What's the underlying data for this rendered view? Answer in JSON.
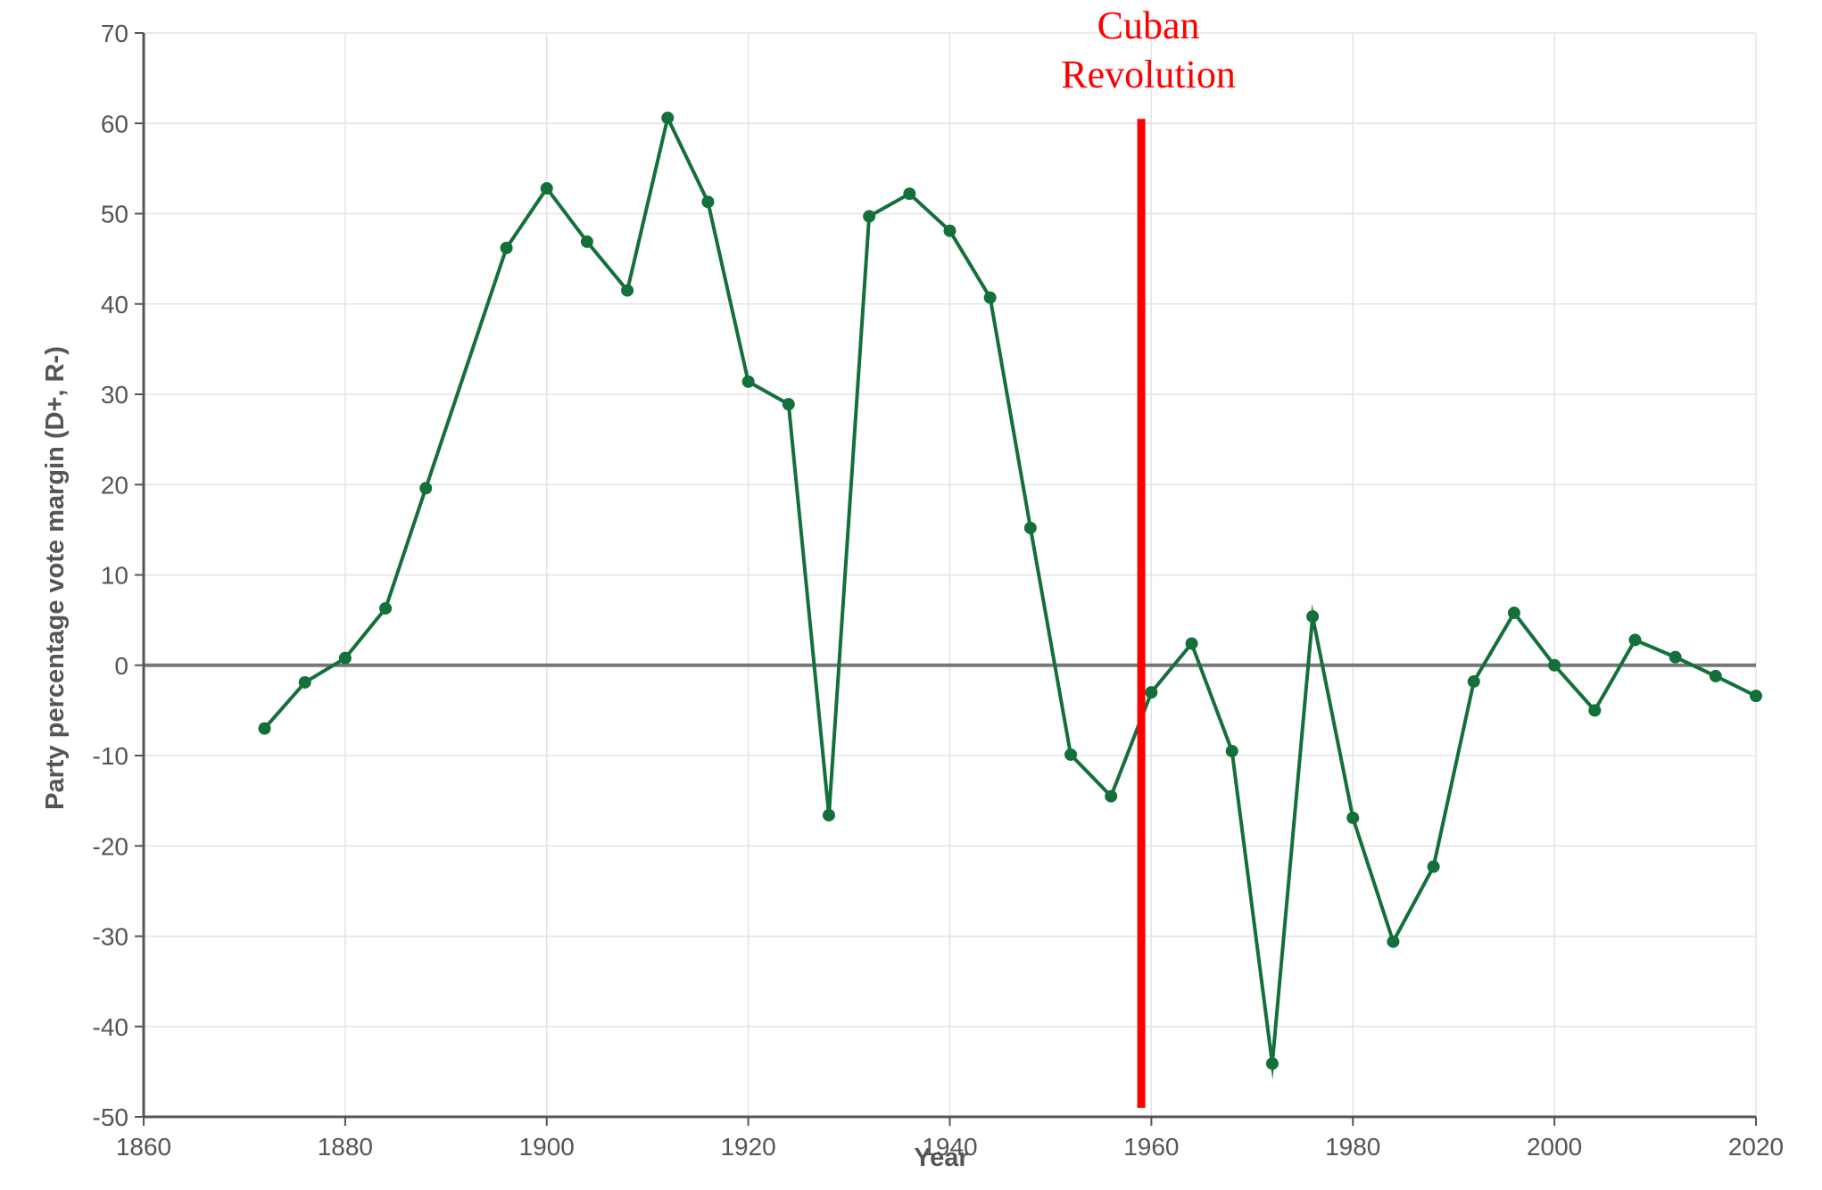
{
  "chart_data": {
    "type": "line",
    "xlabel": "Year",
    "ylabel": "Party percentage vote margin (D+, R-)",
    "xlim": [
      1860,
      2020
    ],
    "ylim": [
      -50,
      70
    ],
    "x_ticks": [
      "1860",
      "1880",
      "1900",
      "1920",
      "1940",
      "1960",
      "1980",
      "2000",
      "2020"
    ],
    "y_ticks": [
      "70",
      "60",
      "50",
      "40",
      "30",
      "20",
      "10",
      "0",
      "-10",
      "-20",
      "-30",
      "-40",
      "-50"
    ],
    "grid": true,
    "zero_line": true,
    "series": [
      {
        "color": "#13703a",
        "points": [
          {
            "x": 1872,
            "y": -7.0
          },
          {
            "x": 1876,
            "y": -1.9
          },
          {
            "x": 1880,
            "y": 0.8
          },
          {
            "x": 1884,
            "y": 6.3
          },
          {
            "x": 1888,
            "y": 19.6
          },
          {
            "x": 1896,
            "y": 46.2
          },
          {
            "x": 1900,
            "y": 52.8
          },
          {
            "x": 1904,
            "y": 46.9
          },
          {
            "x": 1908,
            "y": 41.5
          },
          {
            "x": 1912,
            "y": 60.6
          },
          {
            "x": 1916,
            "y": 51.3
          },
          {
            "x": 1920,
            "y": 31.4
          },
          {
            "x": 1924,
            "y": 28.9
          },
          {
            "x": 1928,
            "y": -16.6
          },
          {
            "x": 1932,
            "y": 49.7
          },
          {
            "x": 1936,
            "y": 52.2
          },
          {
            "x": 1940,
            "y": 48.1
          },
          {
            "x": 1944,
            "y": 40.7
          },
          {
            "x": 1948,
            "y": 15.2
          },
          {
            "x": 1952,
            "y": -9.9
          },
          {
            "x": 1956,
            "y": -14.5
          },
          {
            "x": 1960,
            "y": -3.0
          },
          {
            "x": 1964,
            "y": 2.4
          },
          {
            "x": 1968,
            "y": -9.5
          },
          {
            "x": 1972,
            "y": -44.1
          },
          {
            "x": 1976,
            "y": 5.4
          },
          {
            "x": 1980,
            "y": -16.9
          },
          {
            "x": 1984,
            "y": -30.6
          },
          {
            "x": 1988,
            "y": -22.3
          },
          {
            "x": 1992,
            "y": -1.8
          },
          {
            "x": 1996,
            "y": 5.8
          },
          {
            "x": 2000,
            "y": 0.0
          },
          {
            "x": 2004,
            "y": -5.0
          },
          {
            "x": 2008,
            "y": 2.8
          },
          {
            "x": 2012,
            "y": 0.9
          },
          {
            "x": 2016,
            "y": -1.2
          },
          {
            "x": 2020,
            "y": -3.4
          }
        ]
      }
    ],
    "annotations": [
      {
        "x": 1959,
        "y_range": [
          -49,
          60.5
        ],
        "color": "#ff0000",
        "lines": [
          "Cuban",
          "Revolution"
        ]
      }
    ]
  }
}
